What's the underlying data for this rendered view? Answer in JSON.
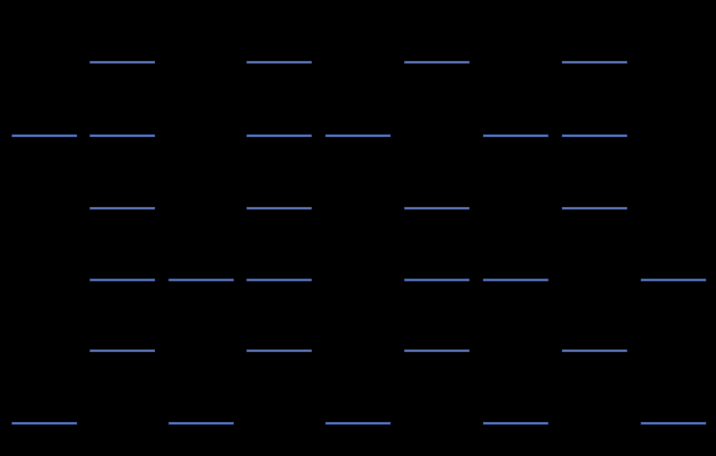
{
  "colors": {
    "background": "#000000",
    "segment": "#6b84c4"
  }
}
